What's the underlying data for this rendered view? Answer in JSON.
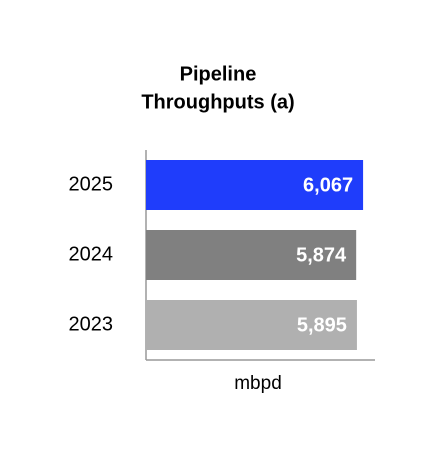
{
  "chart_data": {
    "type": "hbar",
    "title": [
      "Pipeline",
      "Throughputs (a)"
    ],
    "categories": [
      "2025",
      "2024",
      "2023"
    ],
    "values": [
      6067,
      5874,
      5895
    ],
    "value_labels": [
      "6,067",
      "5,874",
      "5,895"
    ],
    "colors": [
      "#1f3dfb",
      "#808080",
      "#b0b0b0"
    ],
    "xlabel": "mbpd",
    "xlim": [
      0,
      6400
    ]
  }
}
